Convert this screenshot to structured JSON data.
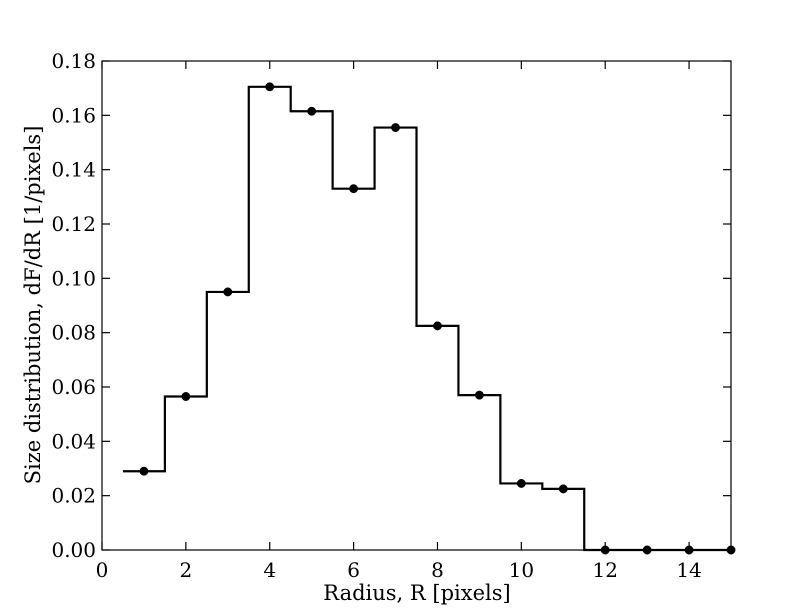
{
  "chart_data": {
    "type": "line",
    "style": "step-histogram-with-markers",
    "title": "",
    "xlabel": "Radius, R  [pixels]",
    "ylabel": "Size distribution, dF/dR  [1/pixels]",
    "xlim": [
      0,
      15
    ],
    "ylim": [
      0,
      0.18
    ],
    "xticks": [
      0,
      2,
      4,
      6,
      8,
      10,
      12,
      14
    ],
    "xtick_labels": [
      "0",
      "2",
      "4",
      "6",
      "8",
      "10",
      "12",
      "14"
    ],
    "yticks": [
      0,
      0.02,
      0.04,
      0.06,
      0.08,
      0.1,
      0.12,
      0.14,
      0.16,
      0.18
    ],
    "ytick_labels": [
      "0.00",
      "0.02",
      "0.04",
      "0.06",
      "0.08",
      "0.10",
      "0.12",
      "0.14",
      "0.16",
      "0.18"
    ],
    "grid": false,
    "legend": "none",
    "colors": {
      "line": "#000000",
      "marker": "#000000",
      "axes": "#000000",
      "background": "#ffffff"
    },
    "series": [
      {
        "x": [
          1,
          2,
          3,
          4,
          5,
          6,
          7,
          8,
          9,
          10,
          11,
          12,
          13,
          14,
          15
        ],
        "values": [
          0.029,
          0.0565,
          0.095,
          0.1705,
          0.1615,
          0.133,
          0.1555,
          0.0825,
          0.057,
          0.0245,
          0.0225,
          0.0,
          0.0,
          0.0,
          0.0
        ]
      }
    ]
  }
}
